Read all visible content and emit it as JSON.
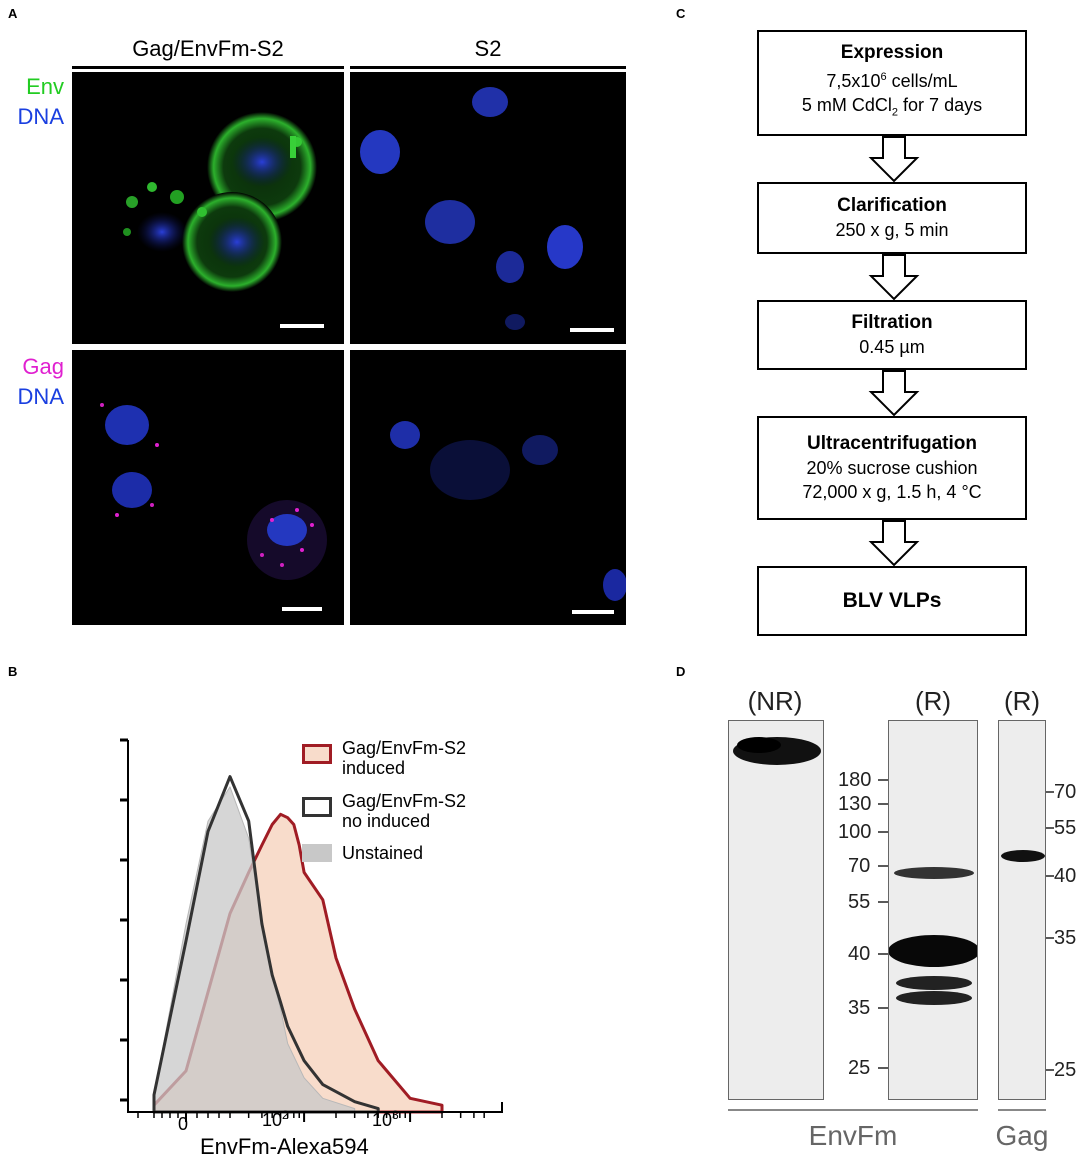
{
  "panels": {
    "a": "A",
    "b": "B",
    "c": "C",
    "d": "D"
  },
  "panel_a": {
    "columns": [
      "Gag/EnvFm-S2",
      "S2"
    ],
    "rows": [
      {
        "label1": "Env",
        "label1_color": "#22cc22",
        "label2": "DNA",
        "label2_color": "#1a3fe0"
      },
      {
        "label1": "Gag",
        "label1_color": "#e020d0",
        "label2": "DNA",
        "label2_color": "#1a3fe0"
      }
    ]
  },
  "panel_b": {
    "xlabel": "EnvFm-Alexa594",
    "tick_zero": "0",
    "tick_100_base": "10",
    "tick_100_exp": "2",
    "tick_1000_base": "10",
    "tick_1000_exp": "3",
    "legend": [
      {
        "line1": "Gag/EnvFm-S2",
        "line2": "induced",
        "stroke": "#a01c24",
        "fill": "#f8dccb"
      },
      {
        "line1": "Gag/EnvFm-S2",
        "line2": "no induced",
        "stroke": "#333333",
        "fill": "#ffffff"
      },
      {
        "line1": "Unstained",
        "line2": "",
        "stroke": "#c8c8c8",
        "fill": "#c8c8c8"
      }
    ]
  },
  "panel_c": {
    "steps": [
      {
        "title": "Expression",
        "line1_pre": "7,5x10",
        "line1_sup": "6",
        "line1_post": " cells/mL",
        "line2_pre": "5 mM CdCl",
        "line2_sub": "2",
        "line2_post": " for 7 days"
      },
      {
        "title": "Clarification",
        "line1": "250 x g, 5 min"
      },
      {
        "title": "Filtration",
        "line1": "0.45 µm"
      },
      {
        "title": "Ultracentrifugation",
        "line1": "20% sucrose cushion",
        "line2": "72,000 x g, 1.5 h, 4 °C"
      },
      {
        "title": "BLV VLPs"
      }
    ]
  },
  "panel_d": {
    "lanes": [
      "(NR)",
      "(R)",
      "(R)"
    ],
    "markers_left": [
      "180",
      "130",
      "100",
      "70",
      "55",
      "40",
      "35",
      "25"
    ],
    "markers_right": [
      "70",
      "55",
      "40",
      "35",
      "25"
    ],
    "bottom_labels": [
      "EnvFm",
      "Gag"
    ]
  },
  "chart_data": {
    "type": "area",
    "title": "",
    "xlabel": "EnvFm-Alexa594",
    "ylabel": "",
    "x_scale": "biexponential",
    "x_ticks": [
      "0",
      "10^2",
      "10^3"
    ],
    "series": [
      {
        "name": "Gag/EnvFm-S2 induced",
        "x": [
          -20,
          0,
          10,
          20,
          30,
          40,
          50,
          60,
          70,
          80,
          90,
          100,
          150,
          200,
          300,
          500,
          1000,
          2000
        ],
        "y": [
          0.02,
          0.12,
          0.35,
          0.58,
          0.7,
          0.78,
          0.84,
          0.87,
          0.86,
          0.84,
          0.78,
          0.7,
          0.62,
          0.45,
          0.3,
          0.15,
          0.04,
          0.02
        ]
      },
      {
        "name": "Gag/EnvFm-S2 no induced",
        "x": [
          -20,
          0,
          10,
          20,
          30,
          40,
          50,
          60,
          70,
          100,
          150,
          300,
          500
        ],
        "y": [
          0.05,
          0.5,
          0.82,
          0.98,
          0.85,
          0.55,
          0.4,
          0.32,
          0.25,
          0.15,
          0.08,
          0.03,
          0.01
        ]
      },
      {
        "name": "Unstained",
        "x": [
          -20,
          0,
          10,
          20,
          30,
          40,
          50,
          60,
          70,
          100,
          150,
          300
        ],
        "y": [
          0.05,
          0.55,
          0.85,
          0.95,
          0.8,
          0.55,
          0.4,
          0.3,
          0.2,
          0.1,
          0.04,
          0.01
        ]
      }
    ]
  }
}
